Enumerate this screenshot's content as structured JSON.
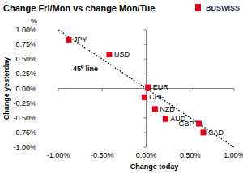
{
  "chart_data": {
    "type": "scatter",
    "title": "Change Fri/Mon vs change Mon/Tue",
    "logo": "BDSWISS",
    "xlabel": "Change today",
    "ylabel": "Change yesterday",
    "y_unit": "%",
    "labels": [
      "JPY",
      "USD",
      "EUR",
      "CHF",
      "NZD",
      "AUD",
      "GBP",
      "CAD"
    ],
    "x": [
      -0.88,
      -0.42,
      0.02,
      -0.02,
      0.1,
      0.22,
      0.6,
      0.65
    ],
    "values": [
      0.83,
      0.58,
      0.02,
      -0.15,
      -0.35,
      -0.52,
      -0.6,
      -0.75
    ],
    "color": "#e3001b",
    "marker": "square",
    "reference_line": {
      "label": "45⁰ line",
      "x": [
        -1,
        1
      ],
      "y": [
        1,
        -1
      ],
      "line_style": "dotted"
    },
    "xlim": [
      -1,
      1
    ],
    "ylim": [
      -1,
      1
    ],
    "xticks": [
      {
        "value": -1,
        "label": "-1.00%"
      },
      {
        "value": -0.5,
        "label": "-0.50%"
      },
      {
        "value": 0,
        "label": "0.00%"
      },
      {
        "value": 0.5,
        "label": "0.50%"
      },
      {
        "value": 1,
        "label": "1.00%"
      }
    ],
    "yticks": [
      {
        "value": 1,
        "label": "1.00%"
      },
      {
        "value": 0.75,
        "label": "0.75%"
      },
      {
        "value": 0.5,
        "label": "0.50%"
      },
      {
        "value": 0.25,
        "label": "0.25%"
      },
      {
        "value": 0,
        "label": "0.00%"
      },
      {
        "value": -0.25,
        "label": "-0.25%"
      },
      {
        "value": -0.5,
        "label": "-0.50%"
      },
      {
        "value": -0.75,
        "label": "-0.75%"
      },
      {
        "value": -1,
        "label": "-1.00%"
      }
    ],
    "grid": false
  }
}
